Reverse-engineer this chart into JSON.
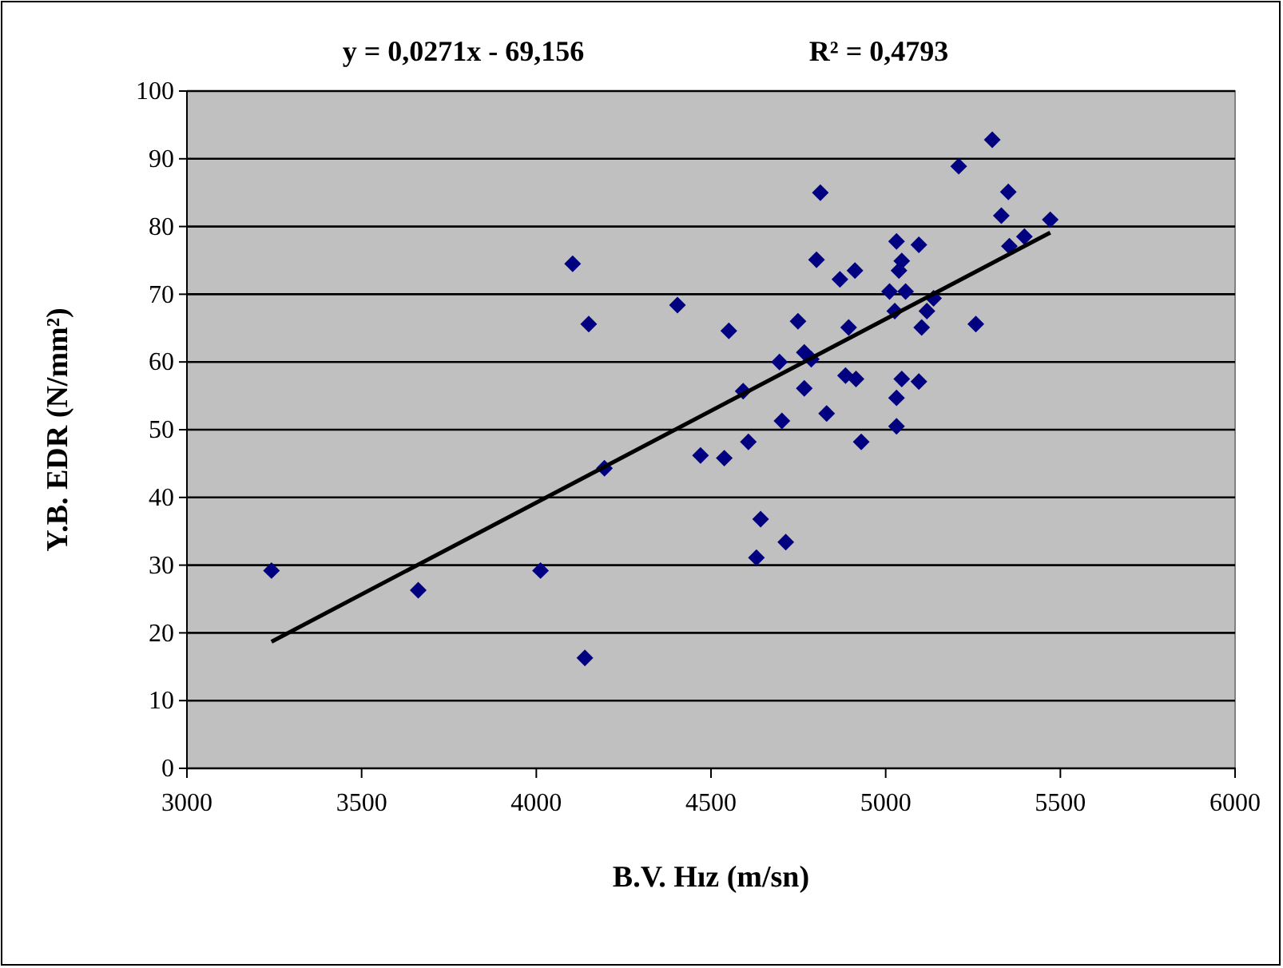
{
  "chart_data": {
    "type": "scatter",
    "xlabel": "B.V. Hız (m/sn)",
    "ylabel": "Y.B. EDR (N/mm²)",
    "annotations": [
      "y = 0,0271x - 69,156",
      "R² = 0,4793"
    ],
    "xlim": [
      3000,
      6000
    ],
    "xticks": [
      3000,
      3500,
      4000,
      4500,
      5000,
      5500,
      6000
    ],
    "ylim": [
      0,
      100
    ],
    "yticks": [
      0,
      10,
      20,
      30,
      40,
      50,
      60,
      70,
      80,
      90,
      100
    ],
    "grid": "y",
    "series": [
      {
        "color": "#000080",
        "marker": "diamond",
        "x": [
          3242,
          3662,
          4012,
          4139,
          4104,
          4150,
          4404,
          4195,
          4470,
          4538,
          4551,
          4592,
          4607,
          4642,
          4630,
          4714,
          4703,
          4696,
          4749,
          4767,
          4787,
          4767,
          4831,
          4802,
          4869,
          4912,
          4894,
          4885,
          4915,
          4930,
          5031,
          5031,
          5046,
          5095,
          5011,
          5026,
          5057,
          5103,
          5118,
          5137,
          5258,
          5031,
          5095,
          5046,
          5038,
          5354,
          5397,
          4813,
          5209,
          5305,
          5351,
          5331,
          5471
        ],
        "values": [
          29.2,
          26.3,
          29.2,
          16.3,
          74.5,
          65.6,
          68.4,
          44.3,
          46.2,
          45.8,
          64.6,
          55.7,
          48.2,
          36.8,
          31.1,
          33.4,
          51.3,
          60.0,
          66.0,
          61.4,
          60.4,
          56.1,
          52.4,
          75.1,
          72.2,
          73.5,
          65.1,
          58.0,
          57.5,
          48.2,
          50.5,
          54.7,
          57.5,
          57.1,
          70.4,
          67.5,
          70.4,
          65.1,
          67.5,
          69.4,
          65.6,
          77.8,
          77.3,
          74.9,
          73.5,
          77.1,
          78.5,
          85.0,
          88.9,
          92.8,
          85.1,
          81.6,
          81.0
        ]
      },
      {
        "type": "line",
        "color": "#000000",
        "line_style": "solid",
        "x": [
          3242,
          5471
        ],
        "values": [
          18.7,
          79.1
        ]
      }
    ]
  }
}
